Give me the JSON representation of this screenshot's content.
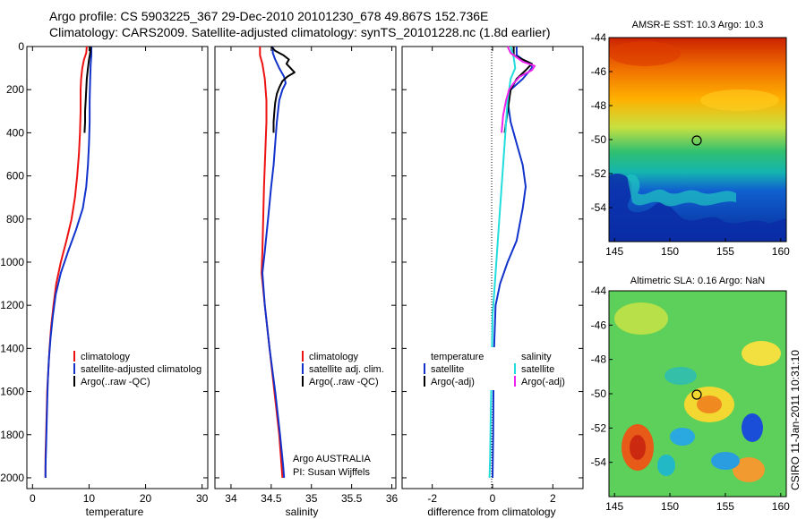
{
  "header": {
    "line1": "Argo profile: CS 5903225_367 29-Dec-2010 20101230_678 49.867S 152.736E",
    "line2": "Climatology: CARS2009. Satellite-adjusted climatology: synTS_20101228.nc (1.8d earlier)"
  },
  "stamp": "CSIRO 11-Jan-2011 10:31:10",
  "colors": {
    "climatology": "#ee1111",
    "satellite": "#1133cc",
    "argo": "#000000",
    "sal_satellite": "#22dddd",
    "sal_argo": "#ee22ee"
  },
  "chart_data": [
    {
      "type": "line",
      "id": "temperature",
      "xlabel": "temperature",
      "ylabel": "",
      "xlim": [
        -1,
        31
      ],
      "ylim": [
        2050,
        0
      ],
      "xticks": [
        "0",
        "10",
        "20",
        "30"
      ],
      "yticks": [
        "0",
        "200",
        "400",
        "600",
        "800",
        "1000",
        "1200",
        "1400",
        "1600",
        "1800",
        "2000"
      ],
      "legend": [
        "climatology",
        "satellite-adjusted climatolog",
        "Argo(..raw -QC)"
      ],
      "legend_position": "bottom-right",
      "series": [
        {
          "name": "climatology",
          "color": "#ee1111",
          "points": [
            [
              9.6,
              0
            ],
            [
              9.5,
              30
            ],
            [
              9.1,
              60
            ],
            [
              8.8,
              100
            ],
            [
              8.6,
              150
            ],
            [
              8.5,
              200
            ],
            [
              8.5,
              300
            ],
            [
              8.4,
              400
            ],
            [
              8.2,
              500
            ],
            [
              7.9,
              600
            ],
            [
              7.5,
              700
            ],
            [
              6.9,
              800
            ],
            [
              6.0,
              900
            ],
            [
              5.0,
              1000
            ],
            [
              4.2,
              1100
            ],
            [
              3.7,
              1200
            ],
            [
              3.3,
              1300
            ],
            [
              3.0,
              1400
            ],
            [
              2.8,
              1500
            ],
            [
              2.6,
              1600
            ],
            [
              2.5,
              1700
            ],
            [
              2.4,
              1800
            ],
            [
              2.3,
              1900
            ],
            [
              2.3,
              2000
            ]
          ]
        },
        {
          "name": "satellite-adjusted climatolog",
          "color": "#1133cc",
          "points": [
            [
              10.4,
              0
            ],
            [
              10.4,
              40
            ],
            [
              10.3,
              80
            ],
            [
              10.2,
              150
            ],
            [
              10.1,
              250
            ],
            [
              10.1,
              350
            ],
            [
              10.0,
              450
            ],
            [
              9.8,
              550
            ],
            [
              9.5,
              650
            ],
            [
              8.9,
              750
            ],
            [
              7.7,
              850
            ],
            [
              6.3,
              950
            ],
            [
              5.0,
              1050
            ],
            [
              4.1,
              1150
            ],
            [
              3.6,
              1250
            ],
            [
              3.2,
              1350
            ],
            [
              2.9,
              1450
            ],
            [
              2.7,
              1550
            ],
            [
              2.6,
              1650
            ],
            [
              2.5,
              1750
            ],
            [
              2.4,
              1850
            ],
            [
              2.3,
              1950
            ],
            [
              2.3,
              2000
            ]
          ]
        },
        {
          "name": "Argo(..raw -QC)",
          "color": "#000000",
          "points": [
            [
              10.3,
              0
            ],
            [
              10.2,
              30
            ],
            [
              10.0,
              60
            ],
            [
              9.8,
              100
            ],
            [
              9.6,
              150
            ],
            [
              9.5,
              200
            ],
            [
              9.4,
              250
            ],
            [
              9.3,
              300
            ],
            [
              9.3,
              350
            ],
            [
              9.2,
              400
            ]
          ]
        }
      ]
    },
    {
      "type": "line",
      "id": "salinity",
      "xlabel": "salinity",
      "xlim": [
        33.8,
        36.05
      ],
      "ylim": [
        2050,
        0
      ],
      "xticks": [
        "34",
        "34.5",
        "35",
        "35.5",
        "36"
      ],
      "legend": [
        "climatology",
        "satellite adj. clim.",
        "Argo(..raw -QC)"
      ],
      "legend_position": "bottom-right",
      "annotation": [
        "Argo AUSTRALIA",
        "PI: Susan Wijffels"
      ],
      "series": [
        {
          "name": "climatology",
          "color": "#ee1111",
          "points": [
            [
              34.36,
              0
            ],
            [
              34.36,
              40
            ],
            [
              34.39,
              80
            ],
            [
              34.42,
              150
            ],
            [
              34.44,
              250
            ],
            [
              34.44,
              350
            ],
            [
              34.43,
              450
            ],
            [
              34.42,
              550
            ],
            [
              34.41,
              650
            ],
            [
              34.4,
              800
            ],
            [
              34.39,
              950
            ],
            [
              34.38,
              1050
            ],
            [
              34.42,
              1200
            ],
            [
              34.48,
              1400
            ],
            [
              34.54,
              1600
            ],
            [
              34.6,
              1800
            ],
            [
              34.63,
              1950
            ],
            [
              34.64,
              2000
            ]
          ]
        },
        {
          "name": "satellite adj. clim.",
          "color": "#1133cc",
          "points": [
            [
              34.52,
              0
            ],
            [
              34.52,
              30
            ],
            [
              34.55,
              60
            ],
            [
              34.6,
              100
            ],
            [
              34.66,
              140
            ],
            [
              34.68,
              170
            ],
            [
              34.64,
              200
            ],
            [
              34.6,
              250
            ],
            [
              34.57,
              350
            ],
            [
              34.55,
              450
            ],
            [
              34.53,
              550
            ],
            [
              34.5,
              650
            ],
            [
              34.46,
              800
            ],
            [
              34.42,
              950
            ],
            [
              34.39,
              1050
            ],
            [
              34.42,
              1200
            ],
            [
              34.48,
              1400
            ],
            [
              34.55,
              1600
            ],
            [
              34.61,
              1800
            ],
            [
              34.65,
              1950
            ],
            [
              34.66,
              2000
            ]
          ]
        },
        {
          "name": "Argo(..raw -QC)",
          "color": "#000000",
          "points": [
            [
              34.5,
              0
            ],
            [
              34.55,
              20
            ],
            [
              34.65,
              40
            ],
            [
              34.72,
              60
            ],
            [
              34.69,
              80
            ],
            [
              34.74,
              100
            ],
            [
              34.79,
              120
            ],
            [
              34.7,
              140
            ],
            [
              34.64,
              160
            ],
            [
              34.6,
              190
            ],
            [
              34.57,
              220
            ],
            [
              34.55,
              260
            ],
            [
              34.54,
              300
            ],
            [
              34.53,
              350
            ],
            [
              34.53,
              400
            ]
          ]
        }
      ]
    },
    {
      "type": "line",
      "id": "difference",
      "xlabel": "difference from climatology",
      "xlim": [
        -3,
        3
      ],
      "ylim": [
        2050,
        0
      ],
      "xticks": [
        "-2",
        "0",
        "2"
      ],
      "legend_groups": [
        {
          "title": "temperature",
          "items": [
            "satellite",
            "Argo(-adj)"
          ]
        },
        {
          "title": "salinity",
          "items": [
            "satellite",
            "Argo(-adj)"
          ]
        }
      ],
      "series": [
        {
          "name": "temperature satellite",
          "color": "#1133cc",
          "points": [
            [
              0.8,
              0
            ],
            [
              0.8,
              40
            ],
            [
              1.0,
              60
            ],
            [
              1.3,
              80
            ],
            [
              1.3,
              100
            ],
            [
              1.0,
              150
            ],
            [
              0.6,
              200
            ],
            [
              0.5,
              250
            ],
            [
              0.6,
              350
            ],
            [
              0.8,
              450
            ],
            [
              1.0,
              550
            ],
            [
              1.1,
              650
            ],
            [
              1.0,
              750
            ],
            [
              0.8,
              900
            ],
            [
              0.5,
              1000
            ],
            [
              0.25,
              1100
            ],
            [
              0.1,
              1200
            ],
            [
              0.05,
              1400
            ],
            [
              0.03,
              1600
            ],
            [
              0.02,
              1800
            ],
            [
              0.0,
              2000
            ]
          ]
        },
        {
          "name": "temperature Argo(-adj)",
          "color": "#000000",
          "points": [
            [
              0.7,
              0
            ],
            [
              0.7,
              40
            ],
            [
              1.0,
              60
            ],
            [
              1.3,
              80
            ],
            [
              1.1,
              110
            ],
            [
              0.8,
              150
            ],
            [
              0.6,
              200
            ],
            [
              0.5,
              300
            ],
            [
              0.4,
              400
            ]
          ]
        },
        {
          "name": "salinity satellite",
          "color": "#22dddd",
          "points": [
            [
              0.6,
              0
            ],
            [
              0.7,
              50
            ],
            [
              0.75,
              100
            ],
            [
              0.6,
              150
            ],
            [
              0.5,
              250
            ],
            [
              0.45,
              350
            ],
            [
              0.4,
              450
            ],
            [
              0.35,
              550
            ],
            [
              0.3,
              650
            ],
            [
              0.2,
              850
            ],
            [
              0.1,
              1050
            ],
            [
              0.0,
              1250
            ],
            [
              -0.03,
              1500
            ],
            [
              -0.06,
              1700
            ],
            [
              -0.08,
              1900
            ],
            [
              -0.1,
              2000
            ]
          ]
        },
        {
          "name": "salinity Argo(-adj)",
          "color": "#ee22ee",
          "points": [
            [
              0.5,
              0
            ],
            [
              0.6,
              30
            ],
            [
              0.8,
              50
            ],
            [
              1.0,
              70
            ],
            [
              1.4,
              90
            ],
            [
              1.3,
              110
            ],
            [
              0.9,
              140
            ],
            [
              0.7,
              170
            ],
            [
              0.55,
              200
            ],
            [
              0.45,
              250
            ],
            [
              0.35,
              320
            ],
            [
              0.3,
              400
            ]
          ]
        }
      ]
    },
    {
      "type": "heatmap",
      "id": "amsre-sst",
      "title": "AMSR-E SST: 10.3  Argo: 10.3",
      "xlim": [
        144.5,
        160.5
      ],
      "ylim": [
        -56,
        -44
      ],
      "xticks": [
        "145",
        "150",
        "155",
        "160"
      ],
      "yticks": [
        "-44",
        "-46",
        "-48",
        "-50",
        "-52",
        "-54"
      ],
      "marker": {
        "lon": 152.736,
        "lat": -49.867
      }
    },
    {
      "type": "heatmap",
      "id": "altimetric-sla",
      "title": "Altimetric SLA: 0.16  Argo: NaN",
      "xlim": [
        144.5,
        160.5
      ],
      "ylim": [
        -56,
        -44
      ],
      "xticks": [
        "145",
        "150",
        "155",
        "160"
      ],
      "yticks": [
        "-44",
        "-46",
        "-48",
        "-50",
        "-52",
        "-54"
      ],
      "marker": {
        "lon": 152.736,
        "lat": -49.867
      }
    }
  ]
}
